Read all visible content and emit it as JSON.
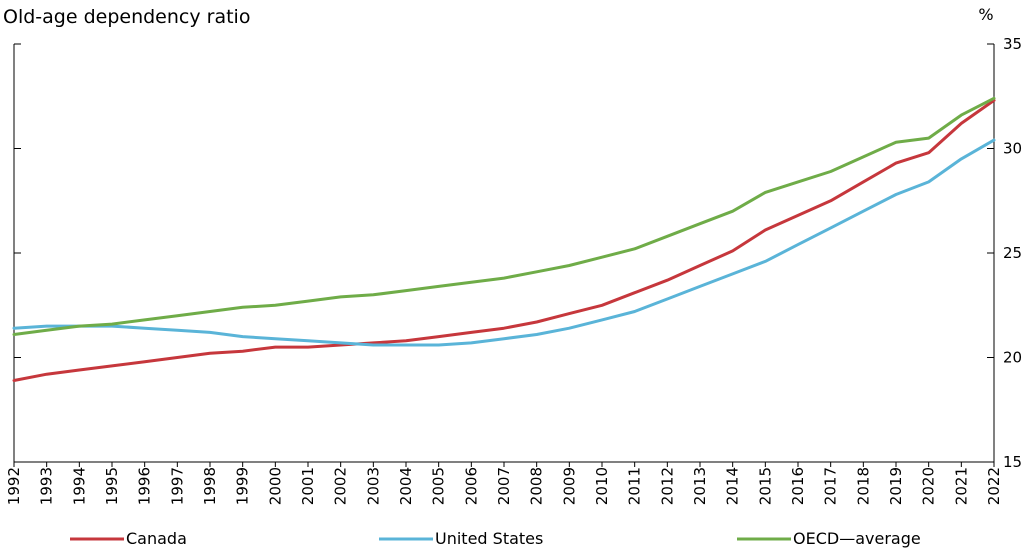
{
  "chart_data": {
    "type": "line",
    "title": "Old-age dependency ratio",
    "unit_label": "%",
    "xlabel": "",
    "ylabel": "",
    "x": [
      1992,
      1993,
      1994,
      1995,
      1996,
      1997,
      1998,
      1999,
      2000,
      2001,
      2002,
      2003,
      2004,
      2005,
      2006,
      2007,
      2008,
      2009,
      2010,
      2011,
      2012,
      2013,
      2014,
      2015,
      2016,
      2017,
      2018,
      2019,
      2020,
      2021,
      2022
    ],
    "ylim": [
      15,
      35
    ],
    "yticks": [
      15,
      20,
      25,
      30,
      35
    ],
    "grid": false,
    "legend_position": "bottom",
    "series": [
      {
        "name": "Canada",
        "color": "#c6373c",
        "values": [
          18.9,
          19.2,
          19.4,
          19.6,
          19.8,
          20.0,
          20.2,
          20.3,
          20.5,
          20.5,
          20.6,
          20.7,
          20.8,
          21.0,
          21.2,
          21.4,
          21.7,
          22.1,
          22.5,
          23.1,
          23.7,
          24.4,
          25.1,
          26.1,
          26.8,
          27.5,
          28.4,
          29.3,
          29.8,
          31.2,
          32.3
        ]
      },
      {
        "name": "United States",
        "color": "#5ab4d8",
        "values": [
          21.4,
          21.5,
          21.5,
          21.5,
          21.4,
          21.3,
          21.2,
          21.0,
          20.9,
          20.8,
          20.7,
          20.6,
          20.6,
          20.6,
          20.7,
          20.9,
          21.1,
          21.4,
          21.8,
          22.2,
          22.8,
          23.4,
          24.0,
          24.6,
          25.4,
          26.2,
          27.0,
          27.8,
          28.4,
          29.5,
          30.4
        ]
      },
      {
        "name": "OECD—average",
        "color": "#6fac48",
        "values": [
          21.1,
          21.3,
          21.5,
          21.6,
          21.8,
          22.0,
          22.2,
          22.4,
          22.5,
          22.7,
          22.9,
          23.0,
          23.2,
          23.4,
          23.6,
          23.8,
          24.1,
          24.4,
          24.8,
          25.2,
          25.8,
          26.4,
          27.0,
          27.9,
          28.4,
          28.9,
          29.6,
          30.3,
          30.5,
          31.6,
          32.4
        ]
      }
    ]
  }
}
